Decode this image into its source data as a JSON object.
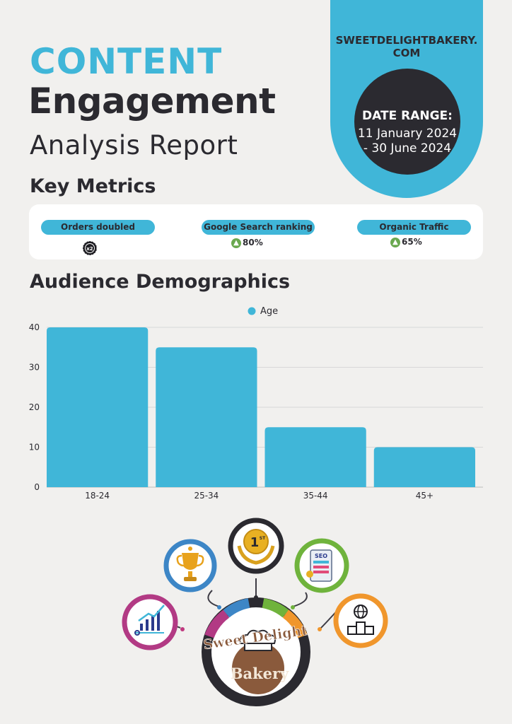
{
  "header": {
    "title_line1": "CONTENT",
    "title_line2": "Engagement",
    "title_line3": "Analysis Report"
  },
  "ribbon": {
    "site_line1": "SWEETDELIGHTBAKERY.",
    "site_line2": "COM",
    "date_label": "DATE RANGE:",
    "date_line1": "11 January 2024",
    "date_line2": "- 30 June 2024"
  },
  "key_metrics": {
    "heading": "Key Metrics",
    "items": [
      {
        "label": "Orders doubled",
        "value": "",
        "icon": "x2-badge-icon"
      },
      {
        "label": "Google Search ranking",
        "value": "80%",
        "icon": "arrow-up-icon"
      },
      {
        "label": "Organic Traffic",
        "value": "65%",
        "icon": "arrow-up-icon"
      }
    ]
  },
  "demographics": {
    "heading": "Audience Demographics"
  },
  "chart_data": {
    "type": "bar",
    "categories": [
      "18-24",
      "25-34",
      "35-44",
      "45+"
    ],
    "series": [
      {
        "name": "Age",
        "values": [
          40,
          35,
          15,
          10
        ],
        "color": "#40b6d8"
      }
    ],
    "y_ticks": [
      0,
      10,
      20,
      30,
      40
    ],
    "ylim": [
      0,
      40
    ],
    "grid": true,
    "legend": "top-center"
  },
  "infographic": {
    "brand_line1": "Sweet Delight",
    "brand_line2": "Bakery",
    "rank_label": "1",
    "rank_suffix": "ST",
    "seo_label": "SEO",
    "icons": [
      "growth-chart-icon",
      "trophy-icon",
      "first-place-medal-icon",
      "seo-report-icon",
      "podium-icon",
      "bakery-logo-icon"
    ]
  },
  "colors": {
    "accent": "#40b6d8",
    "dark": "#2b2a30",
    "background": "#f1f0ee"
  }
}
